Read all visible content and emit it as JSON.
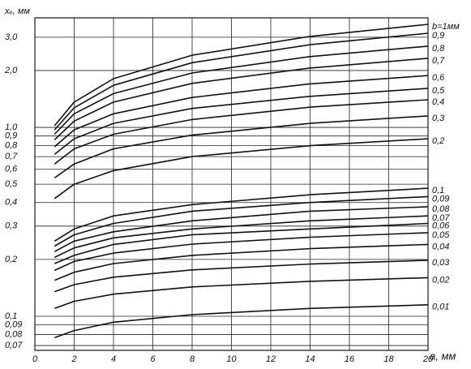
{
  "chart_data": {
    "type": "line",
    "y_label": "xₑ, мм",
    "x_label": "a, мм",
    "x": [
      1,
      2,
      4,
      8,
      14,
      20
    ],
    "xlim": [
      0,
      20
    ],
    "xticks": [
      0,
      2,
      4,
      6,
      8,
      10,
      12,
      14,
      16,
      18,
      20
    ],
    "ylim": [
      0.066,
      3.8
    ],
    "ylog": true,
    "grid": true,
    "color": "#111111",
    "yticks": [
      {
        "value": 3.0,
        "label": "3,0"
      },
      {
        "value": 2.0,
        "label": "2,0"
      },
      {
        "value": 1.0,
        "label": "1,0"
      },
      {
        "value": 0.9,
        "label": "0,9"
      },
      {
        "value": 0.8,
        "label": "0,8"
      },
      {
        "value": 0.7,
        "label": "0,7"
      },
      {
        "value": 0.6,
        "label": "0,6"
      },
      {
        "value": 0.5,
        "label": "0,5"
      },
      {
        "value": 0.4,
        "label": "0,4"
      },
      {
        "value": 0.3,
        "label": "0,3"
      },
      {
        "value": 0.2,
        "label": "0,2"
      },
      {
        "value": 0.1,
        "label": "0,1"
      },
      {
        "value": 0.09,
        "label": "0,09"
      },
      {
        "value": 0.08,
        "label": "0,08"
      },
      {
        "value": 0.07,
        "label": "0,07"
      }
    ],
    "series": [
      {
        "name": "b=1мм",
        "values": [
          1.02,
          1.36,
          1.81,
          2.41,
          3.03,
          3.51
        ]
      },
      {
        "name": "0,9",
        "values": [
          0.97,
          1.27,
          1.67,
          2.2,
          2.74,
          3.15
        ]
      },
      {
        "name": "0,8",
        "values": [
          0.92,
          1.18,
          1.51,
          1.94,
          2.37,
          2.69
        ]
      },
      {
        "name": "0,7",
        "values": [
          0.86,
          1.08,
          1.36,
          1.71,
          2.06,
          2.32
        ]
      },
      {
        "name": "0,6",
        "values": [
          0.79,
          0.97,
          1.18,
          1.44,
          1.7,
          1.88
        ]
      },
      {
        "name": "0,5",
        "values": [
          0.72,
          0.87,
          1.05,
          1.26,
          1.46,
          1.61
        ]
      },
      {
        "name": "0,4",
        "values": [
          0.64,
          0.77,
          0.92,
          1.1,
          1.28,
          1.4
        ]
      },
      {
        "name": "0,3",
        "values": [
          0.54,
          0.64,
          0.77,
          0.91,
          1.05,
          1.15
        ]
      },
      {
        "name": "0,2",
        "values": [
          0.42,
          0.5,
          0.59,
          0.7,
          0.8,
          0.87
        ]
      },
      {
        "name": "0,1",
        "values": [
          0.25,
          0.29,
          0.34,
          0.39,
          0.44,
          0.476
        ]
      },
      {
        "name": "0,09",
        "values": [
          0.235,
          0.27,
          0.31,
          0.36,
          0.4,
          0.43
        ]
      },
      {
        "name": "0,08",
        "values": [
          0.22,
          0.25,
          0.28,
          0.32,
          0.36,
          0.38
        ]
      },
      {
        "name": "0,07",
        "values": [
          0.205,
          0.23,
          0.26,
          0.29,
          0.32,
          0.34
        ]
      },
      {
        "name": "0,06",
        "values": [
          0.19,
          0.21,
          0.24,
          0.27,
          0.29,
          0.31
        ]
      },
      {
        "name": "0,05",
        "values": [
          0.175,
          0.195,
          0.216,
          0.241,
          0.262,
          0.277
        ]
      },
      {
        "name": "0,04",
        "values": [
          0.155,
          0.171,
          0.19,
          0.21,
          0.228,
          0.24
        ]
      },
      {
        "name": "0,03",
        "values": [
          0.135,
          0.147,
          0.161,
          0.176,
          0.189,
          0.198
        ]
      },
      {
        "name": "0,02",
        "values": [
          0.11,
          0.12,
          0.131,
          0.143,
          0.153,
          0.16
        ]
      },
      {
        "name": "0,01",
        "values": [
          0.077,
          0.084,
          0.093,
          0.102,
          0.11,
          0.115
        ]
      }
    ]
  }
}
